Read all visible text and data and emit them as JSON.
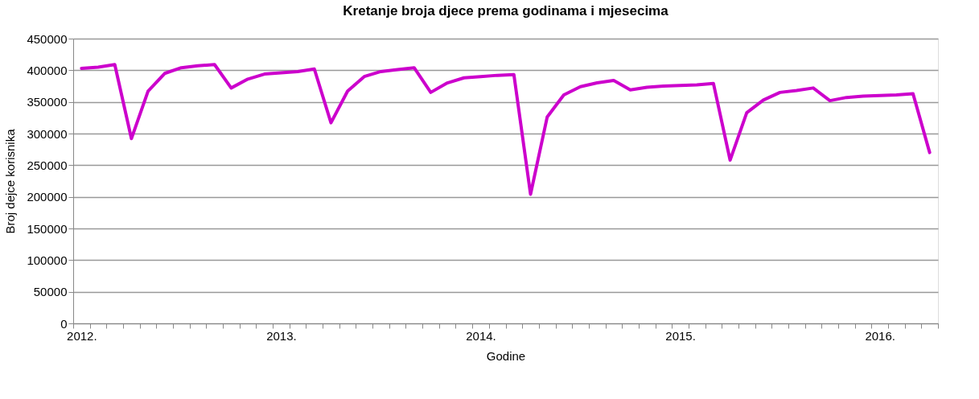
{
  "chart_data": {
    "type": "line",
    "title": "Kretanje broja djece prema godinama i mjesecima",
    "xlabel": "Godine",
    "ylabel": "Broj dejce korisnika",
    "categories": [
      "2012.",
      null,
      null,
      null,
      null,
      null,
      null,
      null,
      null,
      null,
      null,
      null,
      "2013.",
      null,
      null,
      null,
      null,
      null,
      null,
      null,
      null,
      null,
      null,
      null,
      "2014.",
      null,
      null,
      null,
      null,
      null,
      null,
      null,
      null,
      null,
      null,
      null,
      "2015.",
      null,
      null,
      null,
      null,
      null,
      null,
      null,
      null,
      null,
      null,
      null,
      "2016.",
      null,
      null,
      null
    ],
    "series": [
      {
        "color": "#cc00cc",
        "values": [
          403000,
          405000,
          409000,
          292000,
          367000,
          395000,
          404000,
          407000,
          409000,
          372000,
          386000,
          394000,
          396000,
          398000,
          402000,
          317000,
          367000,
          390000,
          398000,
          401000,
          404000,
          365000,
          380000,
          388000,
          390000,
          392000,
          393000,
          204000,
          326000,
          361000,
          374000,
          380000,
          384000,
          369000,
          373000,
          375000,
          376000,
          377000,
          379000,
          258000,
          333000,
          353000,
          365000,
          368000,
          372000,
          352000,
          357000,
          359000,
          360000,
          361000,
          363000,
          270000
        ]
      }
    ],
    "ylim": [
      0,
      450000
    ],
    "yticks": [
      0,
      50000,
      100000,
      150000,
      200000,
      250000,
      300000,
      350000,
      400000,
      450000
    ],
    "grid": "y",
    "marker": "none",
    "line_style": "solid"
  }
}
